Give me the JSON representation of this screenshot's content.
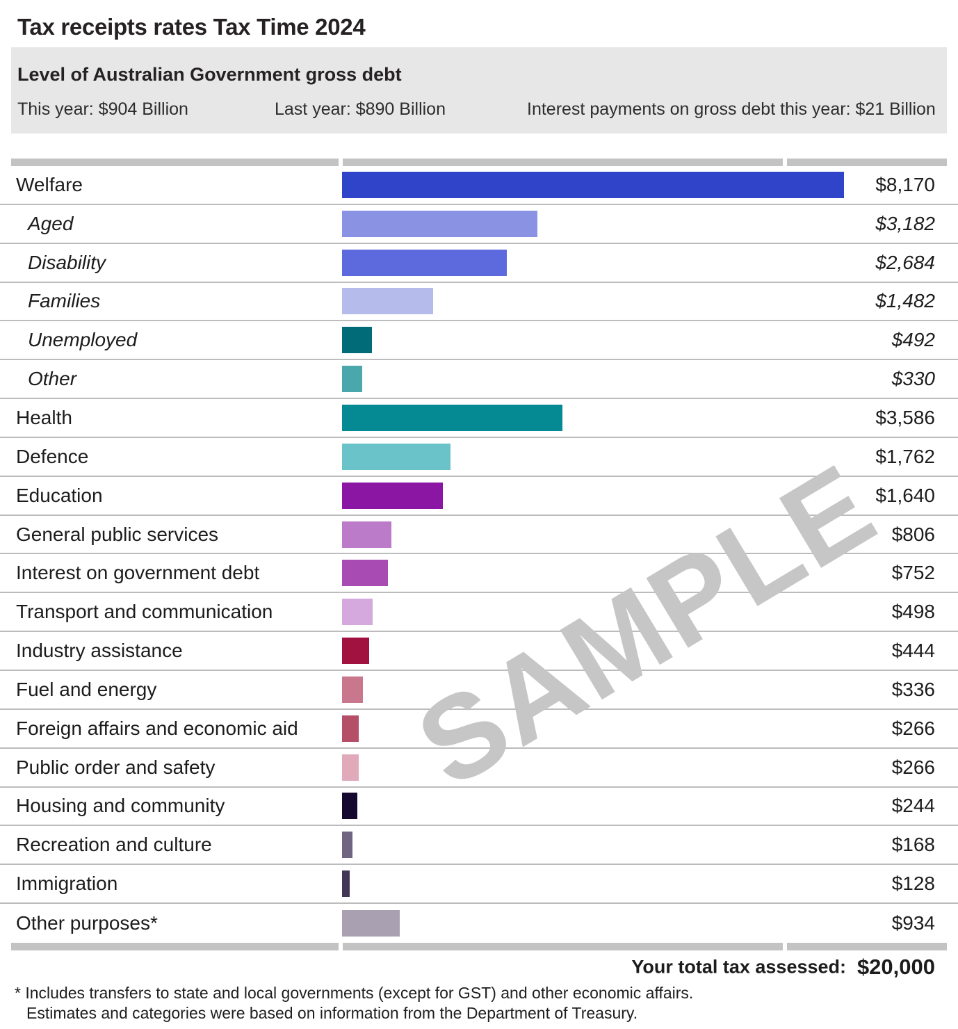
{
  "page_title": "Tax receipts rates Tax Time 2024",
  "debt_box": {
    "heading": "Level of Australian Government gross debt",
    "stats": [
      "This year: $904 Billion",
      "Last year: $890 Billion",
      "Interest payments on gross debt this year: $21 Billion"
    ]
  },
  "watermark_text": "SAMPLE",
  "chart_data": {
    "type": "bar",
    "orientation": "horizontal",
    "title": "Tax receipts rates Tax Time 2024",
    "value_unit": "dollars",
    "xlim": [
      0,
      8170
    ],
    "legend": "none",
    "grid": "row separators only",
    "rows": [
      {
        "label": "Welfare",
        "value": 8170,
        "display": "$8,170",
        "color": "#2f44c9",
        "sub": false
      },
      {
        "label": "Aged",
        "value": 3182,
        "display": "$3,182",
        "color": "#8a92e3",
        "sub": true
      },
      {
        "label": "Disability",
        "value": 2684,
        "display": "$2,684",
        "color": "#5c6add",
        "sub": true
      },
      {
        "label": "Families",
        "value": 1482,
        "display": "$1,482",
        "color": "#b5bcec",
        "sub": true
      },
      {
        "label": "Unemployed",
        "value": 492,
        "display": "$492",
        "color": "#026b78",
        "sub": true
      },
      {
        "label": "Other",
        "value": 330,
        "display": "$330",
        "color": "#4aa7ab",
        "sub": true
      },
      {
        "label": "Health",
        "value": 3586,
        "display": "$3,586",
        "color": "#058a94",
        "sub": false
      },
      {
        "label": "Defence",
        "value": 1762,
        "display": "$1,762",
        "color": "#69c3c8",
        "sub": false
      },
      {
        "label": "Education",
        "value": 1640,
        "display": "$1,640",
        "color": "#8a16a3",
        "sub": false
      },
      {
        "label": "General public services",
        "value": 806,
        "display": "$806",
        "color": "#bb7bc8",
        "sub": false
      },
      {
        "label": "Interest on government debt",
        "value": 752,
        "display": "$752",
        "color": "#a84cb4",
        "sub": false
      },
      {
        "label": "Transport and communication",
        "value": 498,
        "display": "$498",
        "color": "#d5a9de",
        "sub": false
      },
      {
        "label": "Industry assistance",
        "value": 444,
        "display": "$444",
        "color": "#a21240",
        "sub": false
      },
      {
        "label": "Fuel and energy",
        "value": 336,
        "display": "$336",
        "color": "#c9778d",
        "sub": false
      },
      {
        "label": "Foreign affairs and economic aid",
        "value": 266,
        "display": "$266",
        "color": "#b54f68",
        "sub": false
      },
      {
        "label": "Public order and safety",
        "value": 266,
        "display": "$266",
        "color": "#e0aabb",
        "sub": false
      },
      {
        "label": "Housing and community",
        "value": 244,
        "display": "$244",
        "color": "#150930",
        "sub": false
      },
      {
        "label": "Recreation and culture",
        "value": 168,
        "display": "$168",
        "color": "#6f6482",
        "sub": false
      },
      {
        "label": "Immigration",
        "value": 128,
        "display": "$128",
        "color": "#423556",
        "sub": false
      },
      {
        "label": "Other purposes*",
        "value": 934,
        "display": "$934",
        "color": "#a9a1b1",
        "sub": false
      }
    ]
  },
  "total": {
    "label": "Your total tax assessed:",
    "value": "$20,000"
  },
  "footnote": {
    "line1": "* Includes transfers to state and local governments (except for GST) and other economic affairs.",
    "line2": "Estimates and categories were based on information from the Department of Treasury."
  }
}
